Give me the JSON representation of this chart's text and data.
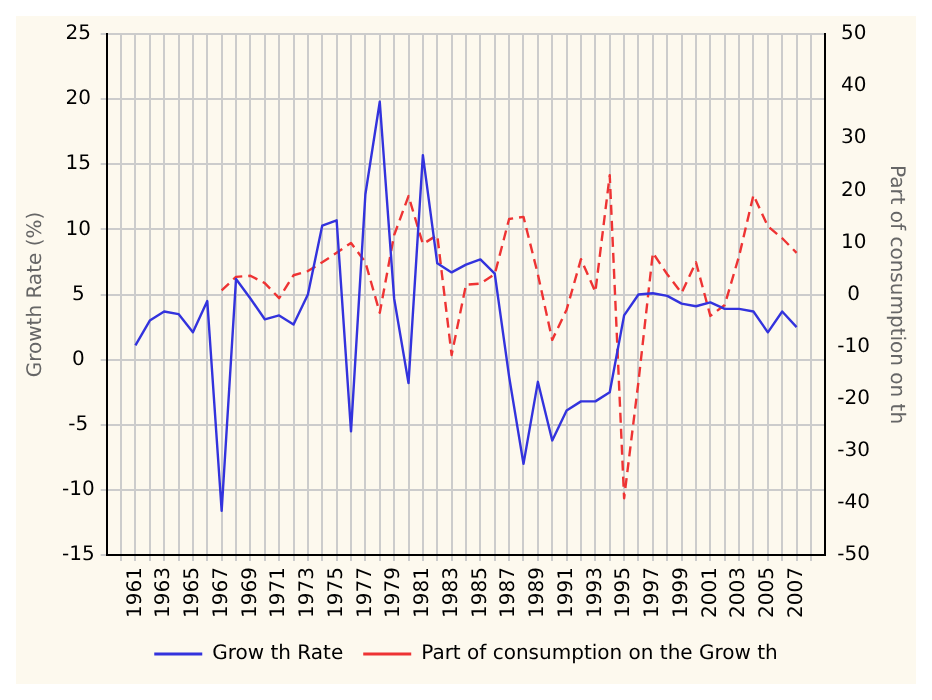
{
  "chart_data": {
    "type": "line",
    "xlabel": null,
    "ylabel": "Growth Rate (%)",
    "y2label": "Part of consumption on th",
    "x": [
      1961,
      1962,
      1963,
      1964,
      1965,
      1966,
      1967,
      1968,
      1969,
      1970,
      1971,
      1972,
      1973,
      1974,
      1975,
      1976,
      1977,
      1978,
      1979,
      1980,
      1981,
      1982,
      1983,
      1984,
      1985,
      1986,
      1987,
      1988,
      1989,
      1990,
      1991,
      1992,
      1993,
      1994,
      1995,
      1996,
      1997,
      1998,
      1999,
      2000,
      2001,
      2002,
      2003,
      2004,
      2005,
      2006,
      2007
    ],
    "series": [
      {
        "name": "Grow th Rate",
        "color": "#3333dd",
        "line_style": "solid",
        "values": [
          1.1,
          3.0,
          3.7,
          3.5,
          2.1,
          4.5,
          -11.6,
          6.2,
          4.7,
          3.1,
          3.4,
          2.7,
          5.0,
          10.3,
          10.7,
          -5.5,
          12.7,
          19.8,
          4.7,
          -1.8,
          15.7,
          7.4,
          6.7,
          7.3,
          7.7,
          6.6,
          -1.3,
          -8.0,
          -1.7,
          -6.2,
          -3.9,
          -3.2,
          -3.2,
          -2.5,
          3.4,
          5.0,
          5.1,
          4.9,
          4.3,
          4.1,
          4.4,
          3.9,
          3.9,
          3.7,
          2.1,
          3.7,
          2.5
        ]
      },
      {
        "name": "Part of consumption on the Grow th",
        "color": "#ee3333",
        "line_style": "dashed",
        "axis": "y2",
        "values": [
          null,
          null,
          null,
          null,
          null,
          null,
          0.8,
          3.4,
          3.6,
          2.2,
          -0.7,
          3.7,
          4.5,
          6.2,
          8.0,
          9.9,
          6.2,
          -3.5,
          11.4,
          18.9,
          9.7,
          11.4,
          -11.6,
          1.9,
          2.1,
          3.9,
          14.5,
          14.9,
          3.9,
          -8.7,
          -2.9,
          6.8,
          0.5,
          22.9,
          -39.1,
          -16.7,
          8.0,
          3.9,
          0.3,
          6.2,
          -4.1,
          -2.0,
          7.4,
          19.1,
          13.1,
          10.8,
          8.0
        ]
      }
    ],
    "xlim": [
      1959,
      2009
    ],
    "xticks": [
      {
        "value": 1960,
        "label": null
      },
      1961,
      {
        "value": 1962,
        "label": null
      },
      1963,
      {
        "value": 1964,
        "label": null
      },
      1965,
      {
        "value": 1966,
        "label": null
      },
      1967,
      {
        "value": 1968,
        "label": null
      },
      1969,
      {
        "value": 1970,
        "label": null
      },
      1971,
      {
        "value": 1972,
        "label": null
      },
      1973,
      {
        "value": 1974,
        "label": null
      },
      1975,
      {
        "value": 1976,
        "label": null
      },
      1977,
      {
        "value": 1978,
        "label": null
      },
      1979,
      {
        "value": 1980,
        "label": null
      },
      1981,
      {
        "value": 1982,
        "label": null
      },
      1983,
      {
        "value": 1984,
        "label": null
      },
      1985,
      {
        "value": 1986,
        "label": null
      },
      1987,
      {
        "value": 1988,
        "label": null
      },
      1989,
      {
        "value": 1990,
        "label": null
      },
      1991,
      {
        "value": 1992,
        "label": null
      },
      1993,
      {
        "value": 1994,
        "label": null
      },
      1995,
      {
        "value": 1996,
        "label": null
      },
      1997,
      {
        "value": 1998,
        "label": null
      },
      1999,
      {
        "value": 2000,
        "label": null
      },
      2001,
      {
        "value": 2002,
        "label": null
      },
      2003,
      {
        "value": 2004,
        "label": null
      },
      2005,
      {
        "value": 2006,
        "label": null
      },
      2007,
      {
        "value": 2008,
        "label": null
      }
    ],
    "ylim": [
      -15,
      25
    ],
    "yticks": [
      -15,
      -10,
      -5,
      0,
      5,
      10,
      15,
      20,
      25
    ],
    "y2lim": [
      -50,
      50
    ],
    "y2ticks": [
      -50,
      -40,
      -30,
      -20,
      -10,
      0,
      10,
      20,
      30,
      40,
      50
    ],
    "grid": true,
    "legend": "bottom",
    "marker": "none"
  }
}
